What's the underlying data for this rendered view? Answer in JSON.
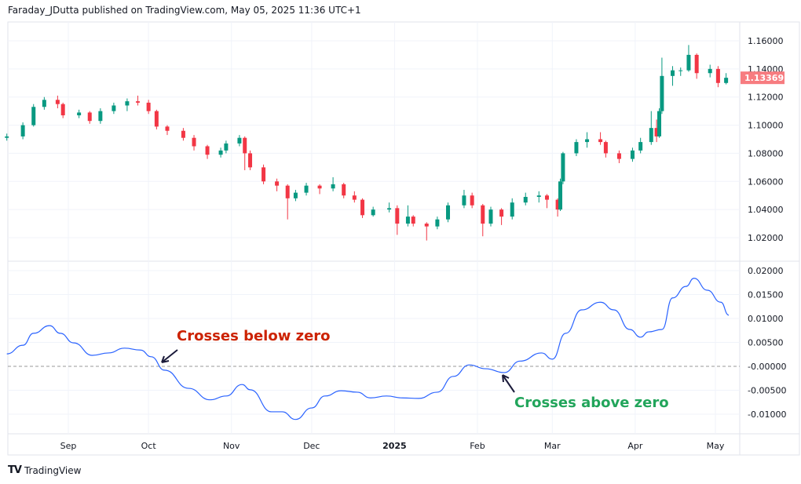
{
  "header": {
    "publisher": "Faraday_JDutta published on TradingView.com, May 05, 2025 11:36 UTC+1"
  },
  "footer": {
    "logo_text": "TradingView"
  },
  "colors": {
    "up": "#089981",
    "down": "#f23645",
    "last_price_bg": "#f77c80",
    "line": "#2962ff",
    "annotation_below": "#cc2200",
    "annotation_above": "#22a55b",
    "arrow": "#1a1a3a",
    "grid": "#f0f3fa"
  },
  "chart_data": [
    {
      "type": "candlestick",
      "ylim": [
        1.01,
        1.17
      ],
      "yticks": [
        "1.16000",
        "1.14000",
        "1.12000",
        "1.10000",
        "1.08000",
        "1.06000",
        "1.04000",
        "1.02000"
      ],
      "yticks_values": [
        1.16,
        1.14,
        1.12,
        1.1,
        1.08,
        1.06,
        1.04,
        1.02
      ],
      "last_price": "1.13369",
      "grid": true,
      "candles": [
        [
          "2024-08-09",
          1.091,
          1.094,
          1.089,
          1.092
        ],
        [
          "2024-08-15",
          1.092,
          1.102,
          1.09,
          1.1
        ],
        [
          "2024-08-19",
          1.1,
          1.115,
          1.099,
          1.113
        ],
        [
          "2024-08-23",
          1.113,
          1.12,
          1.111,
          1.118
        ],
        [
          "2024-08-28",
          1.118,
          1.121,
          1.112,
          1.115
        ],
        [
          "2024-08-30",
          1.115,
          1.116,
          1.105,
          1.107
        ],
        [
          "2024-09-05",
          1.107,
          1.111,
          1.105,
          1.109
        ],
        [
          "2024-09-09",
          1.109,
          1.11,
          1.101,
          1.103
        ],
        [
          "2024-09-13",
          1.103,
          1.112,
          1.101,
          1.11
        ],
        [
          "2024-09-18",
          1.11,
          1.116,
          1.108,
          1.114
        ],
        [
          "2024-09-23",
          1.114,
          1.119,
          1.11,
          1.117
        ],
        [
          "2024-09-27",
          1.117,
          1.121,
          1.114,
          1.116
        ],
        [
          "2024-10-01",
          1.116,
          1.118,
          1.108,
          1.11
        ],
        [
          "2024-10-04",
          1.11,
          1.111,
          1.097,
          1.099
        ],
        [
          "2024-10-08",
          1.099,
          1.1,
          1.093,
          1.096
        ],
        [
          "2024-10-14",
          1.096,
          1.098,
          1.089,
          1.091
        ],
        [
          "2024-10-18",
          1.091,
          1.093,
          1.082,
          1.085
        ],
        [
          "2024-10-23",
          1.085,
          1.086,
          1.076,
          1.079
        ],
        [
          "2024-10-28",
          1.079,
          1.084,
          1.077,
          1.082
        ],
        [
          "2024-10-30",
          1.082,
          1.089,
          1.08,
          1.087
        ],
        [
          "2024-11-04",
          1.087,
          1.093,
          1.085,
          1.091
        ],
        [
          "2024-11-06",
          1.091,
          1.092,
          1.068,
          1.08
        ],
        [
          "2024-11-08",
          1.08,
          1.082,
          1.068,
          1.07
        ],
        [
          "2024-11-13",
          1.07,
          1.072,
          1.058,
          1.06
        ],
        [
          "2024-11-18",
          1.06,
          1.062,
          1.053,
          1.057
        ],
        [
          "2024-11-22",
          1.057,
          1.058,
          1.033,
          1.048
        ],
        [
          "2024-11-25",
          1.048,
          1.054,
          1.046,
          1.052
        ],
        [
          "2024-11-29",
          1.052,
          1.059,
          1.05,
          1.057
        ],
        [
          "2024-12-04",
          1.057,
          1.058,
          1.051,
          1.055
        ],
        [
          "2024-12-09",
          1.055,
          1.063,
          1.053,
          1.058
        ],
        [
          "2024-12-13",
          1.058,
          1.059,
          1.048,
          1.05
        ],
        [
          "2024-12-17",
          1.05,
          1.053,
          1.045,
          1.047
        ],
        [
          "2024-12-20",
          1.047,
          1.048,
          1.034,
          1.036
        ],
        [
          "2024-12-24",
          1.036,
          1.042,
          1.035,
          1.04
        ],
        [
          "2024-12-30",
          1.04,
          1.045,
          1.038,
          1.041
        ],
        [
          "2025-01-02",
          1.041,
          1.043,
          1.022,
          1.03
        ],
        [
          "2025-01-06",
          1.03,
          1.043,
          1.028,
          1.035
        ],
        [
          "2025-01-08",
          1.035,
          1.036,
          1.028,
          1.03
        ],
        [
          "2025-01-13",
          1.03,
          1.031,
          1.018,
          1.028
        ],
        [
          "2025-01-17",
          1.028,
          1.035,
          1.026,
          1.033
        ],
        [
          "2025-01-21",
          1.033,
          1.045,
          1.031,
          1.043
        ],
        [
          "2025-01-27",
          1.043,
          1.054,
          1.041,
          1.05
        ],
        [
          "2025-01-30",
          1.05,
          1.052,
          1.041,
          1.043
        ],
        [
          "2025-02-03",
          1.043,
          1.044,
          1.021,
          1.03
        ],
        [
          "2025-02-06",
          1.03,
          1.042,
          1.028,
          1.04
        ],
        [
          "2025-02-10",
          1.04,
          1.041,
          1.029,
          1.035
        ],
        [
          "2025-02-14",
          1.035,
          1.048,
          1.033,
          1.045
        ],
        [
          "2025-02-19",
          1.045,
          1.052,
          1.043,
          1.049
        ],
        [
          "2025-02-24",
          1.049,
          1.053,
          1.045,
          1.05
        ],
        [
          "2025-02-27",
          1.05,
          1.051,
          1.041,
          1.047
        ],
        [
          "2025-03-03",
          1.047,
          1.048,
          1.035,
          1.04
        ],
        [
          "2025-03-04",
          1.04,
          1.062,
          1.039,
          1.06
        ],
        [
          "2025-03-05",
          1.06,
          1.081,
          1.058,
          1.08
        ],
        [
          "2025-03-10",
          1.08,
          1.09,
          1.078,
          1.088
        ],
        [
          "2025-03-14",
          1.088,
          1.095,
          1.084,
          1.09
        ],
        [
          "2025-03-19",
          1.09,
          1.095,
          1.086,
          1.088
        ],
        [
          "2025-03-21",
          1.088,
          1.089,
          1.077,
          1.08
        ],
        [
          "2025-03-26",
          1.08,
          1.082,
          1.073,
          1.076
        ],
        [
          "2025-03-31",
          1.076,
          1.084,
          1.074,
          1.082
        ],
        [
          "2025-04-03",
          1.082,
          1.091,
          1.08,
          1.088
        ],
        [
          "2025-04-07",
          1.088,
          1.11,
          1.086,
          1.098
        ],
        [
          "2025-04-09",
          1.098,
          1.104,
          1.088,
          1.092
        ],
        [
          "2025-04-10",
          1.092,
          1.112,
          1.091,
          1.11
        ],
        [
          "2025-04-11",
          1.11,
          1.148,
          1.108,
          1.135
        ],
        [
          "2025-04-15",
          1.135,
          1.142,
          1.128,
          1.139
        ],
        [
          "2025-04-18",
          1.139,
          1.141,
          1.135,
          1.139
        ],
        [
          "2025-04-21",
          1.139,
          1.157,
          1.138,
          1.15
        ],
        [
          "2025-04-24",
          1.15,
          1.151,
          1.133,
          1.137
        ],
        [
          "2025-04-29",
          1.137,
          1.143,
          1.134,
          1.14
        ],
        [
          "2025-05-02",
          1.14,
          1.142,
          1.127,
          1.13
        ],
        [
          "2025-05-05",
          1.13,
          1.137,
          1.129,
          1.1337
        ]
      ]
    },
    {
      "type": "line",
      "ylim": [
        -0.0145,
        0.0225
      ],
      "yticks": [
        "0.02000",
        "0.01500",
        "0.01000",
        "0.00500",
        "-0.00000",
        "-0.00500",
        "-0.01000"
      ],
      "yticks_values": [
        0.02,
        0.015,
        0.01,
        0.005,
        0,
        -0.005,
        -0.01
      ],
      "zero_line": true,
      "points": [
        [
          "2024-08-09",
          0.0026
        ],
        [
          "2024-08-15",
          0.0044
        ],
        [
          "2024-08-19",
          0.0069
        ],
        [
          "2024-08-25",
          0.0085
        ],
        [
          "2024-08-29",
          0.0069
        ],
        [
          "2024-09-03",
          0.0049
        ],
        [
          "2024-09-10",
          0.0023
        ],
        [
          "2024-09-16",
          0.0028
        ],
        [
          "2024-09-22",
          0.0038
        ],
        [
          "2024-09-28",
          0.0034
        ],
        [
          "2024-10-02",
          0.002
        ],
        [
          "2024-10-07",
          -0.0008
        ],
        [
          "2024-10-16",
          -0.0046
        ],
        [
          "2024-10-24",
          -0.007
        ],
        [
          "2024-10-30",
          -0.0062
        ],
        [
          "2024-11-05",
          -0.0038
        ],
        [
          "2024-11-08",
          -0.0049
        ],
        [
          "2024-11-16",
          -0.0095
        ],
        [
          "2024-11-20",
          -0.0095
        ],
        [
          "2024-11-25",
          -0.0111
        ],
        [
          "2024-12-01",
          -0.0087
        ],
        [
          "2024-12-06",
          -0.0062
        ],
        [
          "2024-12-12",
          -0.0051
        ],
        [
          "2024-12-18",
          -0.0054
        ],
        [
          "2024-12-23",
          -0.0066
        ],
        [
          "2024-12-29",
          -0.0062
        ],
        [
          "2025-01-04",
          -0.0066
        ],
        [
          "2025-01-10",
          -0.0067
        ],
        [
          "2025-01-17",
          -0.0054
        ],
        [
          "2025-01-23",
          -0.0021
        ],
        [
          "2025-01-29",
          0.0003
        ],
        [
          "2025-02-04",
          -0.0005
        ],
        [
          "2025-02-11",
          -0.0013
        ],
        [
          "2025-02-17",
          0.0011
        ],
        [
          "2025-02-25",
          0.0028
        ],
        [
          "2025-03-01",
          0.0015
        ],
        [
          "2025-03-06",
          0.0069
        ],
        [
          "2025-03-12",
          0.0118
        ],
        [
          "2025-03-19",
          0.0134
        ],
        [
          "2025-03-24",
          0.0118
        ],
        [
          "2025-03-30",
          0.0077
        ],
        [
          "2025-04-03",
          0.0061
        ],
        [
          "2025-04-06",
          0.0072
        ],
        [
          "2025-04-11",
          0.0077
        ],
        [
          "2025-04-15",
          0.0143
        ],
        [
          "2025-04-20",
          0.0167
        ],
        [
          "2025-04-23",
          0.0184
        ],
        [
          "2025-04-28",
          0.0159
        ],
        [
          "2025-05-03",
          0.0134
        ],
        [
          "2025-05-06",
          0.0107
        ]
      ]
    }
  ],
  "xaxis": {
    "ticks": [
      [
        "Sep",
        "2024-09-01"
      ],
      [
        "Oct",
        "2024-10-01"
      ],
      [
        "Nov",
        "2024-11-01"
      ],
      [
        "Dec",
        "2024-12-01"
      ],
      [
        "2025",
        "2025-01-01"
      ],
      [
        "Feb",
        "2025-02-01"
      ],
      [
        "Mar",
        "2025-03-01"
      ],
      [
        "Apr",
        "2025-04-01"
      ],
      [
        "May",
        "2025-05-01"
      ]
    ]
  },
  "annotations": {
    "below": "Crosses below zero",
    "above": "Crosses above zero"
  }
}
